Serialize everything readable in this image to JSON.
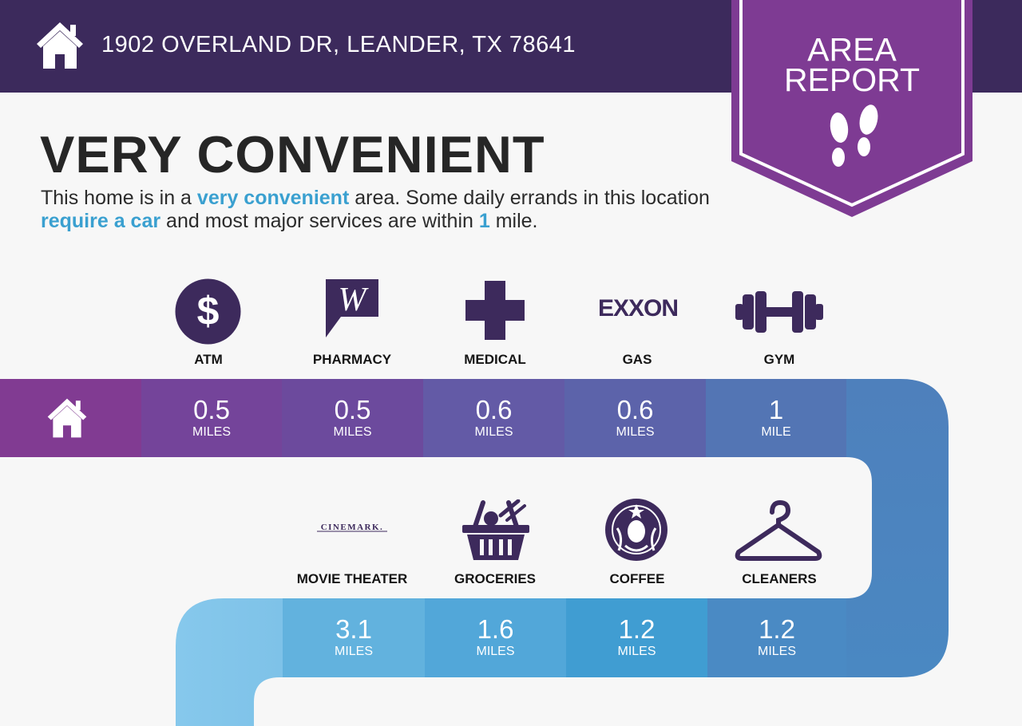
{
  "header": {
    "address": "1902 OVERLAND DR, LEANDER, TX 78641"
  },
  "badge": {
    "line1": "AREA",
    "line2": "REPORT",
    "icon": "footprints-icon"
  },
  "title": "VERY CONVENIENT",
  "description": {
    "p1": "This home is in a ",
    "hl1": "very convenient",
    "p2": " area. Some daily errands in this location ",
    "hl2": "require a car",
    "p3": " and most major services are within ",
    "hl3": "1",
    "p4": " mile."
  },
  "row1": [
    {
      "label": "ATM",
      "value": "0.5",
      "unit": "MILES",
      "icon": "dollar-icon"
    },
    {
      "label": "PHARMACY",
      "value": "0.5",
      "unit": "MILES",
      "icon": "walgreens-logo",
      "logo": "W"
    },
    {
      "label": "MEDICAL",
      "value": "0.6",
      "unit": "MILES",
      "icon": "medical-cross-icon"
    },
    {
      "label": "GAS",
      "value": "0.6",
      "unit": "MILES",
      "icon": "exxon-logo",
      "logo": "EXXON"
    },
    {
      "label": "GYM",
      "value": "1",
      "unit": "MILE",
      "icon": "dumbbell-icon"
    }
  ],
  "row2": [
    {
      "label": "MOVIE THEATER",
      "value": "3.1",
      "unit": "MILES",
      "icon": "cinemark-logo",
      "logo": "CINEMARK."
    },
    {
      "label": "GROCERIES",
      "value": "1.6",
      "unit": "MILES",
      "icon": "grocery-basket-icon"
    },
    {
      "label": "COFFEE",
      "value": "1.2",
      "unit": "MILES",
      "icon": "starbucks-logo"
    },
    {
      "label": "CLEANERS",
      "value": "1.2",
      "unit": "MILES",
      "icon": "hanger-icon"
    }
  ],
  "colors": {
    "header": "#3c2a5c",
    "badge": "#7e3b93",
    "icon": "#3d2a5c",
    "highlight": "#3aa0d0",
    "row1": [
      "#813b92",
      "#74449a",
      "#6c4a9d",
      "#635aa6",
      "#5c63aa",
      "#5375b4",
      "#4e80bc"
    ],
    "row2": [
      "#7ec2e8",
      "#62b2de",
      "#52a7d9",
      "#409dd2",
      "#4a8ac4",
      "#4a88c2"
    ]
  }
}
